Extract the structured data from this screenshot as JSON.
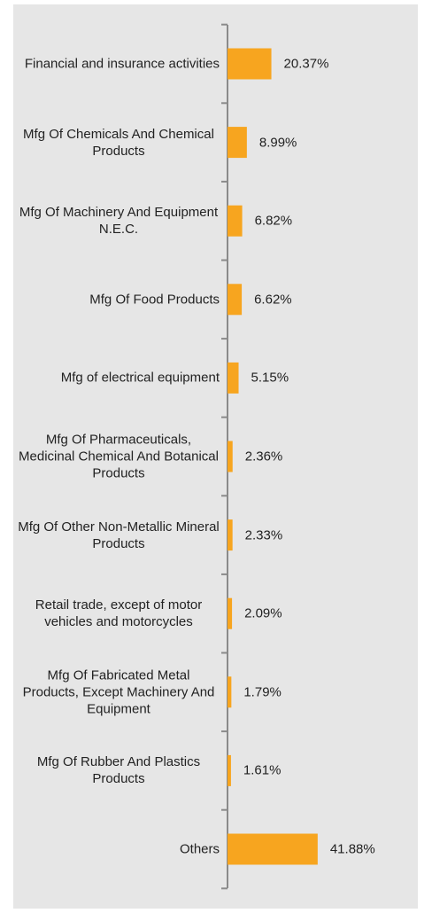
{
  "chart_data": {
    "type": "barh",
    "categories": [
      "Financial and insurance activities",
      "Mfg Of Chemicals And Chemical Products",
      "Mfg Of Machinery And Equipment N.E.C.",
      "Mfg Of Food Products",
      "Mfg of electrical equipment",
      "Mfg Of Pharmaceuticals, Medicinal Chemical And Botanical Products",
      "Mfg Of Other Non-Metallic Mineral Products",
      "Retail trade, except of motor vehicles and motorcycles",
      "Mfg Of Fabricated Metal Products, Except Machinery And Equipment",
      "Mfg Of Rubber And Plastics Products",
      "Others"
    ],
    "values": [
      20.37,
      8.99,
      6.82,
      6.62,
      5.15,
      2.36,
      2.33,
      2.09,
      1.79,
      1.61,
      41.88
    ],
    "value_labels": [
      "20.37%",
      "8.99%",
      "6.82%",
      "6.62%",
      "5.15%",
      "2.36%",
      "2.33%",
      "2.09%",
      "1.79%",
      "1.61%",
      "41.88%"
    ],
    "color": "#f7a51f",
    "xlim": [
      0,
      88
    ]
  }
}
